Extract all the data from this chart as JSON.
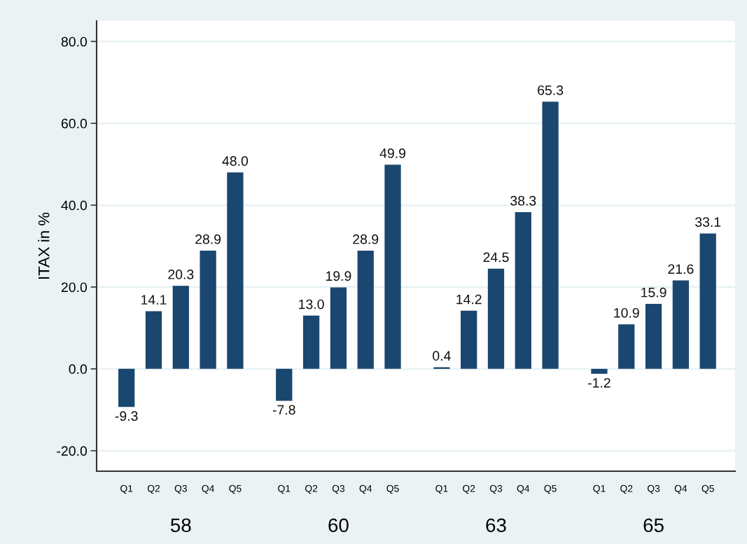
{
  "chart_data": {
    "type": "bar",
    "ylabel": "ITAX in %",
    "categories": [
      "Q1",
      "Q2",
      "Q3",
      "Q4",
      "Q5",
      "Q1",
      "Q2",
      "Q3",
      "Q4",
      "Q5",
      "Q1",
      "Q2",
      "Q3",
      "Q4",
      "Q5",
      "Q1",
      "Q2",
      "Q3",
      "Q4",
      "Q5"
    ],
    "values": [
      -9.3,
      14.1,
      20.3,
      28.9,
      48.0,
      -7.8,
      13.0,
      19.9,
      28.9,
      49.9,
      0.4,
      14.2,
      24.5,
      38.3,
      65.3,
      -1.2,
      10.9,
      15.9,
      21.6,
      33.1
    ],
    "value_labels": [
      "-9.3",
      "14.1",
      "20.3",
      "28.9",
      "48.0",
      "-7.8",
      "13.0",
      "19.9",
      "28.9",
      "49.9",
      "0.4",
      "14.2",
      "24.5",
      "38.3",
      "65.3",
      "-1.2",
      "10.9",
      "15.9",
      "21.6",
      "33.1"
    ],
    "color": "#1a476f",
    "annotations": [
      "58",
      "60",
      "63",
      "65"
    ],
    "ylim": [
      -25,
      85
    ],
    "yticks": [
      {
        "value": -20,
        "label": "-20.0"
      },
      {
        "value": 0,
        "label": "0.0"
      },
      {
        "value": 20,
        "label": "20.0"
      },
      {
        "value": 40,
        "label": "40.0"
      },
      {
        "value": 60,
        "label": "60.0"
      },
      {
        "value": 80,
        "label": "80.0"
      }
    ],
    "grid": "y"
  }
}
